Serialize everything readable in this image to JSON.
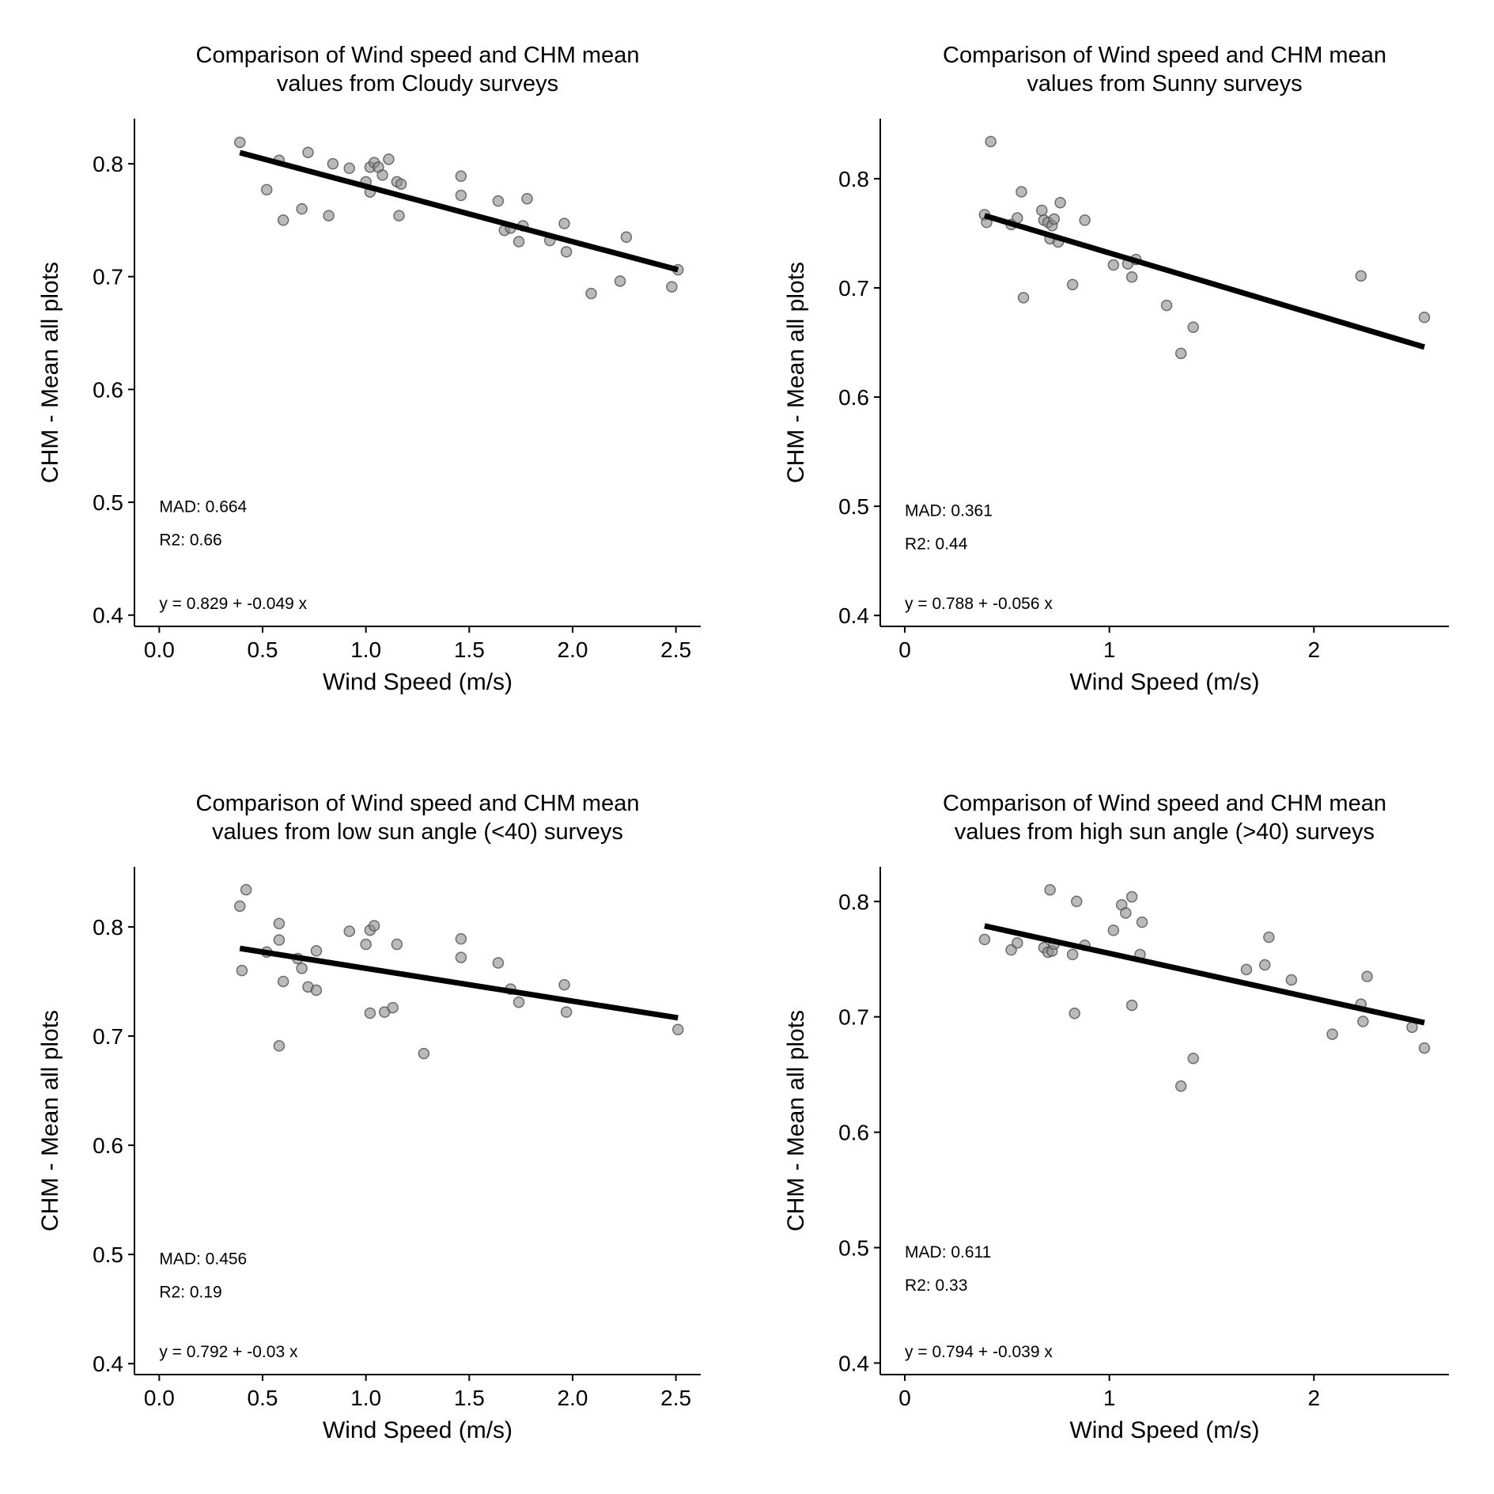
{
  "chart_data": [
    {
      "type": "scatter",
      "title": "Comparison of Wind speed and CHM mean\nvalues from Cloudy surveys",
      "xlabel": "Wind Speed (m/s)",
      "ylabel": "CHM - Mean all plots",
      "xlim": [
        -0.12,
        2.62
      ],
      "ylim": [
        0.39,
        0.84
      ],
      "xticks": [
        "0.0",
        "0.5",
        "1.0",
        "1.5",
        "2.0",
        "2.5"
      ],
      "xtick_values": [
        0,
        0.5,
        1.0,
        1.5,
        2.0,
        2.5
      ],
      "yticks": [
        "0.4",
        "0.5",
        "0.6",
        "0.7",
        "0.8"
      ],
      "ytick_values": [
        0.4,
        0.5,
        0.6,
        0.7,
        0.8
      ],
      "x": [
        0.39,
        0.52,
        0.58,
        0.6,
        0.69,
        0.72,
        0.82,
        0.84,
        0.92,
        1.0,
        1.02,
        1.02,
        1.04,
        1.06,
        1.08,
        1.11,
        1.15,
        1.16,
        1.17,
        1.46,
        1.46,
        1.64,
        1.67,
        1.7,
        1.74,
        1.76,
        1.78,
        1.89,
        1.96,
        1.97,
        2.09,
        2.23,
        2.26,
        2.48,
        2.51
      ],
      "y": [
        0.819,
        0.777,
        0.803,
        0.75,
        0.76,
        0.81,
        0.754,
        0.8,
        0.796,
        0.784,
        0.797,
        0.775,
        0.801,
        0.797,
        0.79,
        0.804,
        0.784,
        0.754,
        0.782,
        0.789,
        0.772,
        0.767,
        0.741,
        0.743,
        0.731,
        0.745,
        0.769,
        0.732,
        0.747,
        0.722,
        0.685,
        0.696,
        0.735,
        0.691,
        0.706
      ],
      "fit": {
        "intercept": 0.829,
        "slope": -0.049,
        "x_range": [
          0.39,
          2.51
        ]
      },
      "annotations": {
        "mad": "MAD: 0.664",
        "r2": "R2: 0.66",
        "equation": "y =  0.829 + -0.049 x"
      }
    },
    {
      "type": "scatter",
      "title": "Comparison of Wind speed and CHM mean\nvalues from Sunny surveys",
      "xlabel": "Wind Speed (m/s)",
      "ylabel": "CHM - Mean all plots",
      "xlim": [
        -0.12,
        2.66
      ],
      "ylim": [
        0.39,
        0.855
      ],
      "xticks": [
        "0",
        "1",
        "2"
      ],
      "xtick_values": [
        0,
        1,
        2
      ],
      "yticks": [
        "0.4",
        "0.5",
        "0.6",
        "0.7",
        "0.8"
      ],
      "ytick_values": [
        0.4,
        0.5,
        0.6,
        0.7,
        0.8
      ],
      "x": [
        0.39,
        0.4,
        0.42,
        0.52,
        0.55,
        0.57,
        0.58,
        0.67,
        0.68,
        0.7,
        0.71,
        0.72,
        0.73,
        0.75,
        0.76,
        0.82,
        0.88,
        1.02,
        1.09,
        1.11,
        1.13,
        1.28,
        1.35,
        1.41,
        2.23,
        2.54
      ],
      "y": [
        0.767,
        0.76,
        0.834,
        0.758,
        0.764,
        0.788,
        0.691,
        0.771,
        0.762,
        0.76,
        0.745,
        0.757,
        0.763,
        0.742,
        0.778,
        0.703,
        0.762,
        0.721,
        0.722,
        0.71,
        0.726,
        0.684,
        0.64,
        0.664,
        0.711,
        0.673
      ],
      "fit": {
        "intercept": 0.788,
        "slope": -0.056,
        "x_range": [
          0.39,
          2.54
        ]
      },
      "annotations": {
        "mad": "MAD: 0.361",
        "r2": "R2: 0.44",
        "equation": "y =  0.788 + -0.056 x"
      }
    },
    {
      "type": "scatter",
      "title": "Comparison of Wind speed and CHM mean\nvalues from low sun angle (<40) surveys",
      "xlabel": "Wind Speed (m/s)",
      "ylabel": "CHM - Mean all plots",
      "xlim": [
        -0.12,
        2.62
      ],
      "ylim": [
        0.39,
        0.855
      ],
      "xticks": [
        "0.0",
        "0.5",
        "1.0",
        "1.5",
        "2.0",
        "2.5"
      ],
      "xtick_values": [
        0,
        0.5,
        1.0,
        1.5,
        2.0,
        2.5
      ],
      "yticks": [
        "0.4",
        "0.5",
        "0.6",
        "0.7",
        "0.8"
      ],
      "ytick_values": [
        0.4,
        0.5,
        0.6,
        0.7,
        0.8
      ],
      "x": [
        0.39,
        0.4,
        0.42,
        0.52,
        0.58,
        0.58,
        0.58,
        0.6,
        0.67,
        0.69,
        0.72,
        0.76,
        0.76,
        0.92,
        1.0,
        1.02,
        1.02,
        1.04,
        1.09,
        1.13,
        1.15,
        1.28,
        1.46,
        1.46,
        1.64,
        1.7,
        1.74,
        1.96,
        1.97,
        2.51
      ],
      "y": [
        0.819,
        0.76,
        0.834,
        0.777,
        0.803,
        0.788,
        0.691,
        0.75,
        0.771,
        0.762,
        0.745,
        0.742,
        0.778,
        0.796,
        0.784,
        0.721,
        0.797,
        0.801,
        0.722,
        0.726,
        0.784,
        0.684,
        0.789,
        0.772,
        0.767,
        0.743,
        0.731,
        0.747,
        0.722,
        0.706
      ],
      "fit": {
        "intercept": 0.792,
        "slope": -0.03,
        "x_range": [
          0.39,
          2.51
        ]
      },
      "annotations": {
        "mad": "MAD: 0.456",
        "r2": "R2: 0.19",
        "equation": "y =  0.792 + -0.03 x"
      }
    },
    {
      "type": "scatter",
      "title": "Comparison of Wind speed and CHM mean\nvalues from high sun angle (>40) surveys",
      "xlabel": "Wind Speed (m/s)",
      "ylabel": "CHM - Mean all plots",
      "xlim": [
        -0.12,
        2.66
      ],
      "ylim": [
        0.39,
        0.83
      ],
      "xticks": [
        "0",
        "1",
        "2"
      ],
      "xtick_values": [
        0,
        1,
        2
      ],
      "yticks": [
        "0.4",
        "0.5",
        "0.6",
        "0.7",
        "0.8"
      ],
      "ytick_values": [
        0.4,
        0.5,
        0.6,
        0.7,
        0.8
      ],
      "x": [
        0.39,
        0.52,
        0.55,
        0.68,
        0.7,
        0.71,
        0.72,
        0.73,
        0.82,
        0.83,
        0.84,
        0.88,
        1.02,
        1.06,
        1.08,
        1.11,
        1.11,
        1.15,
        1.16,
        1.35,
        1.41,
        1.67,
        1.76,
        1.78,
        1.89,
        2.09,
        2.23,
        2.24,
        2.26,
        2.48,
        2.54
      ],
      "y": [
        0.767,
        0.758,
        0.764,
        0.76,
        0.756,
        0.81,
        0.757,
        0.763,
        0.754,
        0.703,
        0.8,
        0.762,
        0.775,
        0.797,
        0.79,
        0.804,
        0.71,
        0.754,
        0.782,
        0.64,
        0.664,
        0.741,
        0.745,
        0.769,
        0.732,
        0.685,
        0.711,
        0.696,
        0.735,
        0.691,
        0.673
      ],
      "fit": {
        "intercept": 0.794,
        "slope": -0.039,
        "x_range": [
          0.39,
          2.54
        ]
      },
      "annotations": {
        "mad": "MAD: 0.611",
        "r2": "R2: 0.33",
        "equation": "y =  0.794 + -0.039 x"
      }
    }
  ]
}
